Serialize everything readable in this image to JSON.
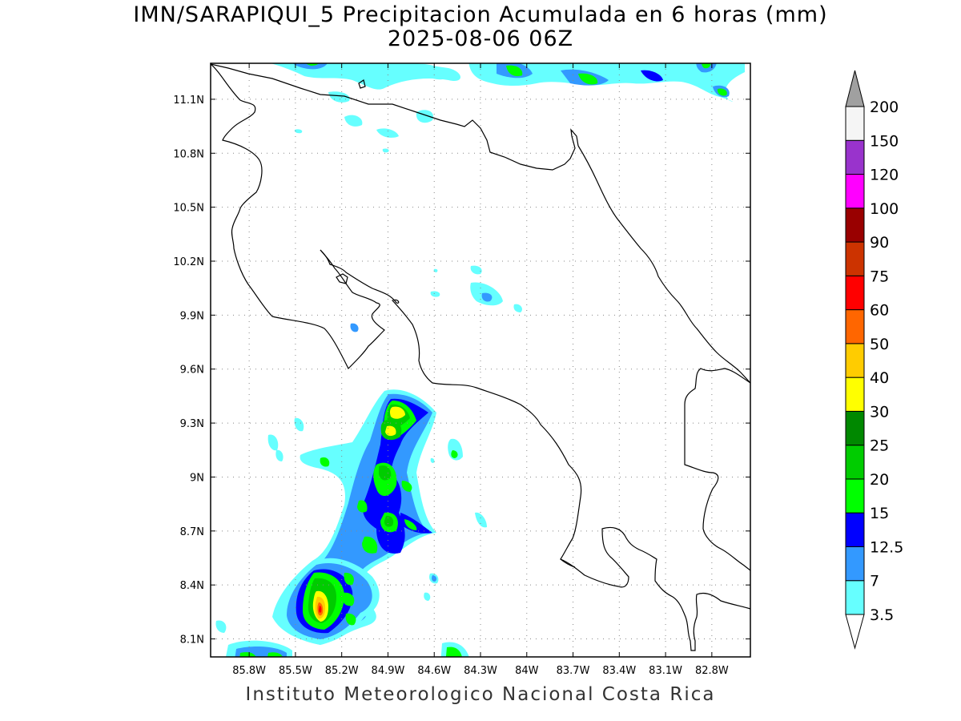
{
  "title_line1": "IMN/SARAPIQUI_5 Precipitacion Acumulada en 6 horas (mm)",
  "title_line2": "2025-08-06 06Z",
  "credit": "Instituto Meteorologico Nacional Costa Rica",
  "map": {
    "lon_range": [
      -86.05,
      -82.55
    ],
    "lat_range": [
      8.0,
      11.3
    ],
    "lon_ticks": [
      {
        "value": -85.8,
        "label": "85.8W"
      },
      {
        "value": -85.5,
        "label": "85.5W"
      },
      {
        "value": -85.2,
        "label": "85.2W"
      },
      {
        "value": -84.9,
        "label": "84.9W"
      },
      {
        "value": -84.6,
        "label": "84.6W"
      },
      {
        "value": -84.3,
        "label": "84.3W"
      },
      {
        "value": -84.0,
        "label": "84W"
      },
      {
        "value": -83.7,
        "label": "83.7W"
      },
      {
        "value": -83.4,
        "label": "83.4W"
      },
      {
        "value": -83.1,
        "label": "83.1W"
      },
      {
        "value": -82.8,
        "label": "82.8W"
      }
    ],
    "lat_ticks": [
      {
        "value": 8.1,
        "label": "8.1N"
      },
      {
        "value": 8.4,
        "label": "8.4N"
      },
      {
        "value": 8.7,
        "label": "8.7N"
      },
      {
        "value": 9.0,
        "label": "9N"
      },
      {
        "value": 9.3,
        "label": "9.3N"
      },
      {
        "value": 9.6,
        "label": "9.6N"
      },
      {
        "value": 9.9,
        "label": "9.9N"
      },
      {
        "value": 10.2,
        "label": "10.2N"
      },
      {
        "value": 10.5,
        "label": "10.5N"
      },
      {
        "value": 10.8,
        "label": "10.8N"
      },
      {
        "value": 11.1,
        "label": "11.1N"
      }
    ],
    "grid": true,
    "gridline_style": "dotted"
  },
  "colorbar": {
    "orientation": "vertical",
    "placement": "right",
    "under_color": "#ffffff",
    "over_color": "#a0a0a0",
    "levels": [
      {
        "label": "3.5",
        "color": "#66ffff"
      },
      {
        "label": "7",
        "color": "#3399ff"
      },
      {
        "label": "12.5",
        "color": "#0000ff"
      },
      {
        "label": "15",
        "color": "#00ff00"
      },
      {
        "label": "20",
        "color": "#00cc00"
      },
      {
        "label": "25",
        "color": "#008800"
      },
      {
        "label": "30",
        "color": "#ffff00"
      },
      {
        "label": "40",
        "color": "#ffcc00"
      },
      {
        "label": "50",
        "color": "#ff6600"
      },
      {
        "label": "60",
        "color": "#ff0000"
      },
      {
        "label": "75",
        "color": "#cc3300"
      },
      {
        "label": "90",
        "color": "#990000"
      },
      {
        "label": "100",
        "color": "#ff00ff"
      },
      {
        "label": "120",
        "color": "#9933cc"
      },
      {
        "label": "150",
        "color": "#f5f5f5"
      },
      {
        "label": "200",
        "color": ""
      }
    ]
  }
}
